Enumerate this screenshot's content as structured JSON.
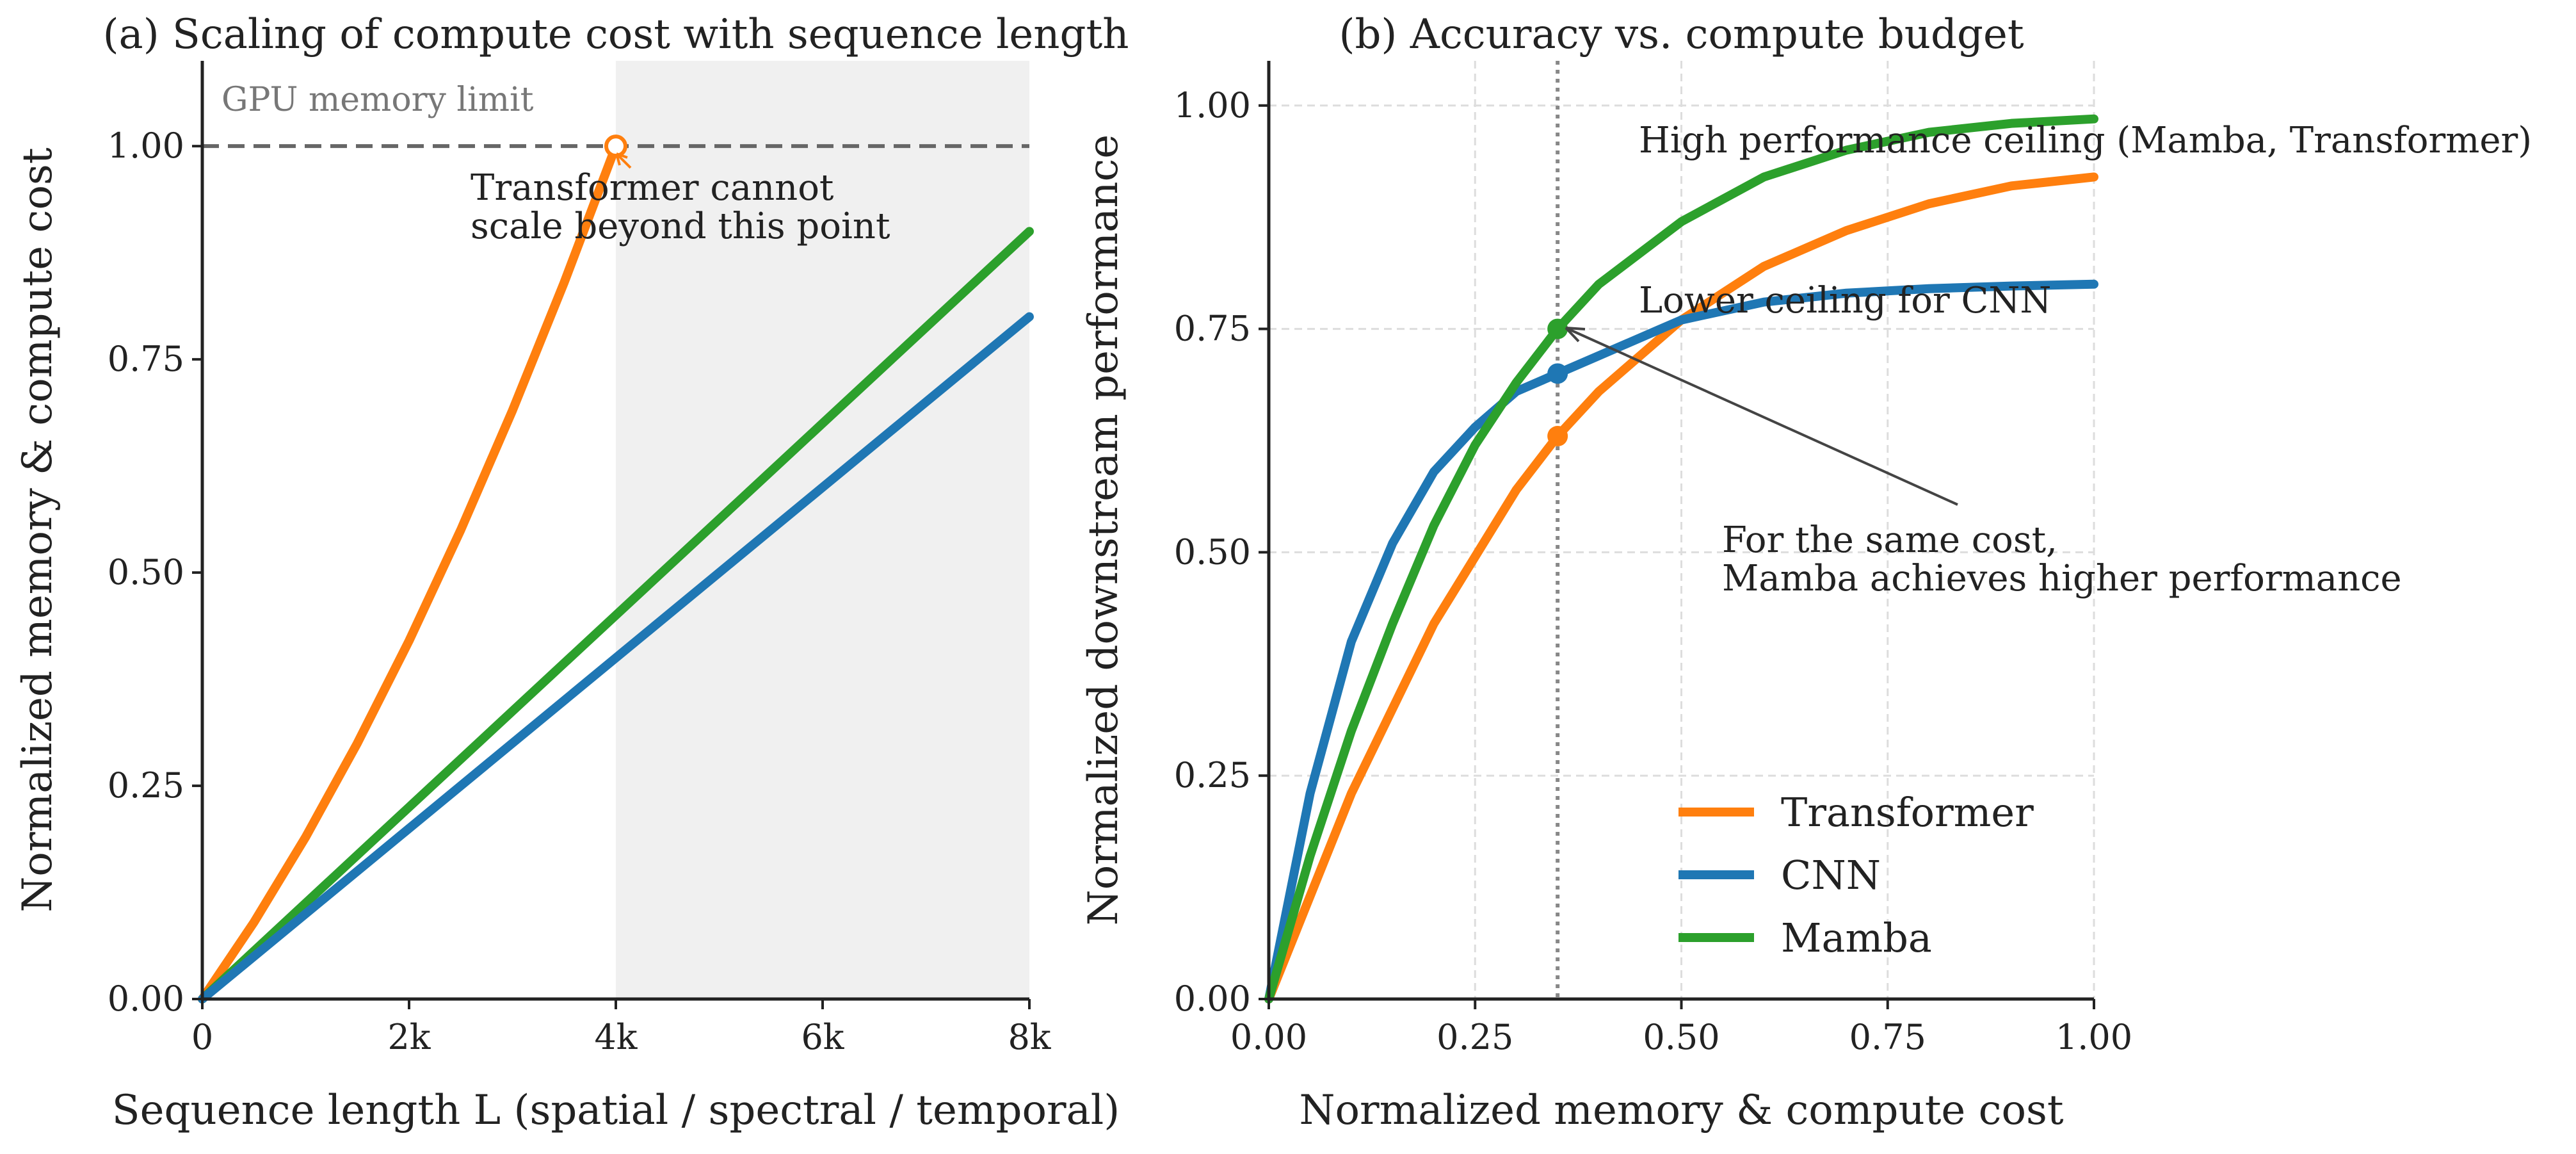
{
  "chart_data": [
    {
      "type": "line",
      "title": "(a) Scaling of compute cost with sequence length",
      "xlabel": "Sequence length L (spatial / spectral / temporal)",
      "ylabel": "Normalized memory & compute cost",
      "xlim": [
        0,
        8000
      ],
      "ylim": [
        0,
        1.1
      ],
      "xticks": [
        {
          "value": 0,
          "label": "0"
        },
        {
          "value": 2000,
          "label": "2k"
        },
        {
          "value": 4000,
          "label": "4k"
        },
        {
          "value": 6000,
          "label": "6k"
        },
        {
          "value": 8000,
          "label": "8k"
        }
      ],
      "yticks": [
        {
          "value": 0,
          "label": "0.00"
        },
        {
          "value": 0.25,
          "label": "0.25"
        },
        {
          "value": 0.5,
          "label": "0.50"
        },
        {
          "value": 0.75,
          "label": "0.75"
        },
        {
          "value": 1.0,
          "label": "1.00"
        }
      ],
      "grid": false,
      "shaded_region": {
        "x_from": 4000,
        "x_to": 8000,
        "color": "#f0f0f0"
      },
      "reference_line": {
        "y": 1.0,
        "label": "GPU memory limit",
        "style": "dashed",
        "color": "#666666"
      },
      "series": [
        {
          "name": "Transformer",
          "color": "#ff7f0e",
          "x": [
            0,
            500,
            1000,
            1500,
            2000,
            2500,
            3000,
            3500,
            4000
          ],
          "y": [
            0,
            0.09,
            0.19,
            0.3,
            0.42,
            0.55,
            0.69,
            0.84,
            1.0
          ],
          "end_marker": {
            "x": 4000,
            "y": 1.0,
            "style": "open-circle"
          }
        },
        {
          "name": "Mamba",
          "color": "#2ca02c",
          "x": [
            0,
            8000
          ],
          "y": [
            0,
            0.9
          ]
        },
        {
          "name": "CNN",
          "color": "#1f77b4",
          "x": [
            0,
            8000
          ],
          "y": [
            0,
            0.8
          ]
        }
      ],
      "annotations": [
        {
          "text_lines": [
            "Transformer cannot",
            "scale beyond this point"
          ],
          "points_to": {
            "x": 4000,
            "y": 1.0
          }
        }
      ]
    },
    {
      "type": "line",
      "title": "(b) Accuracy vs. compute budget",
      "xlabel": "Normalized memory & compute cost",
      "ylabel": "Normalized downstream performance",
      "xlim": [
        0,
        1.0
      ],
      "ylim": [
        0,
        1.05
      ],
      "xticks": [
        {
          "value": 0,
          "label": "0.00"
        },
        {
          "value": 0.25,
          "label": "0.25"
        },
        {
          "value": 0.5,
          "label": "0.50"
        },
        {
          "value": 0.75,
          "label": "0.75"
        },
        {
          "value": 1.0,
          "label": "1.00"
        }
      ],
      "yticks": [
        {
          "value": 0,
          "label": "0.00"
        },
        {
          "value": 0.25,
          "label": "0.25"
        },
        {
          "value": 0.5,
          "label": "0.50"
        },
        {
          "value": 0.75,
          "label": "0.75"
        },
        {
          "value": 1.0,
          "label": "1.00"
        }
      ],
      "grid": true,
      "reference_vline": {
        "x": 0.35,
        "style": "dotted",
        "color": "#888888"
      },
      "series": [
        {
          "name": "Transformer",
          "color": "#ff7f0e",
          "x": [
            0,
            0.1,
            0.2,
            0.3,
            0.35,
            0.4,
            0.5,
            0.6,
            0.7,
            0.8,
            0.9,
            1.0
          ],
          "y": [
            0,
            0.23,
            0.42,
            0.57,
            0.63,
            0.68,
            0.76,
            0.82,
            0.86,
            0.89,
            0.91,
            0.92
          ],
          "marker": {
            "x": 0.35,
            "y": 0.63
          }
        },
        {
          "name": "CNN",
          "color": "#1f77b4",
          "x": [
            0,
            0.05,
            0.1,
            0.15,
            0.2,
            0.25,
            0.3,
            0.35,
            0.4,
            0.5,
            0.6,
            0.7,
            0.8,
            0.9,
            1.0
          ],
          "y": [
            0,
            0.23,
            0.4,
            0.51,
            0.59,
            0.64,
            0.68,
            0.7,
            0.72,
            0.76,
            0.78,
            0.79,
            0.795,
            0.798,
            0.8
          ],
          "marker": {
            "x": 0.35,
            "y": 0.7
          }
        },
        {
          "name": "Mamba",
          "color": "#2ca02c",
          "x": [
            0,
            0.05,
            0.1,
            0.15,
            0.2,
            0.25,
            0.3,
            0.35,
            0.4,
            0.5,
            0.6,
            0.7,
            0.8,
            0.9,
            1.0
          ],
          "y": [
            0,
            0.16,
            0.3,
            0.42,
            0.53,
            0.62,
            0.69,
            0.75,
            0.8,
            0.87,
            0.92,
            0.95,
            0.97,
            0.98,
            0.985
          ],
          "marker": {
            "x": 0.35,
            "y": 0.75
          }
        }
      ],
      "legend": {
        "placement": "lower-right",
        "entries": [
          "Transformer",
          "CNN",
          "Mamba"
        ]
      },
      "annotations": [
        {
          "text_lines": [
            "High performance ceiling (Mamba, Transformer)"
          ],
          "points_to": {
            "x": 1.0,
            "y": 0.985
          }
        },
        {
          "text_lines": [
            "Lower ceiling for CNN"
          ],
          "points_to": {
            "x": 0.95,
            "y": 0.8
          }
        },
        {
          "text_lines": [
            "For the same cost,",
            "Mamba achieves higher performance"
          ],
          "points_to": {
            "x": 0.35,
            "y": 0.75
          }
        }
      ]
    }
  ]
}
